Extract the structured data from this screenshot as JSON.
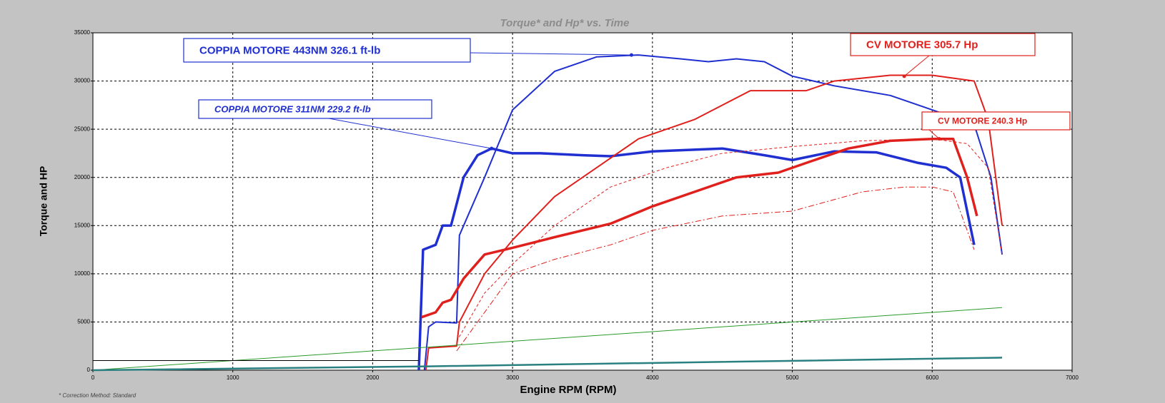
{
  "chart_data": {
    "type": "line",
    "title": "Torque* and Hp* vs. Time",
    "x_label": "Engine RPM (RPM)",
    "y_label": "Torque and HP",
    "footnote": "* Correction Method: Standard",
    "xlim": [
      0,
      7000
    ],
    "xticks": [
      0,
      1000,
      2000,
      3000,
      4000,
      5000,
      6000,
      7000
    ],
    "ylim": [
      0,
      35000
    ],
    "yticks": [
      0,
      5000,
      10000,
      15000,
      20000,
      25000,
      30000,
      35000
    ],
    "grid": true,
    "series": [
      {
        "color": "#1f2fd0",
        "width": 2,
        "dash": "solid",
        "x": [
          2370,
          2400,
          2450,
          2600,
          2620,
          2800,
          3000,
          3300,
          3600,
          3900,
          4200,
          4400,
          4600,
          4800,
          5000,
          5300,
          5700,
          6000,
          6300,
          6420,
          6500
        ],
        "values": [
          0,
          4500,
          5000,
          4900,
          14000,
          20000,
          27000,
          31000,
          32500,
          32700,
          32300,
          32000,
          32300,
          32000,
          30500,
          29500,
          28500,
          27000,
          25500,
          20000,
          12000
        ]
      },
      {
        "color": "#1f2fd0",
        "width": 3.5,
        "dash": "solid",
        "x": [
          2330,
          2360,
          2450,
          2500,
          2560,
          2650,
          2750,
          2850,
          3000,
          3200,
          3500,
          3700,
          4000,
          4500,
          4800,
          5000,
          5300,
          5600,
          5900,
          6100,
          6200,
          6300
        ],
        "values": [
          0,
          12500,
          13000,
          15000,
          15000,
          20000,
          22300,
          23000,
          22500,
          22500,
          22300,
          22200,
          22700,
          23000,
          22300,
          21800,
          22700,
          22600,
          21500,
          21000,
          20000,
          13000
        ]
      },
      {
        "color": "#e0201c",
        "width": 2,
        "dash": "solid",
        "x": [
          2380,
          2400,
          2600,
          2620,
          2800,
          3000,
          3300,
          3600,
          3900,
          4300,
          4700,
          5100,
          5300,
          5700,
          6000,
          6300,
          6400,
          6500
        ],
        "values": [
          0,
          2300,
          2500,
          5000,
          10000,
          13500,
          18000,
          21000,
          24000,
          26000,
          29000,
          29000,
          30000,
          30600,
          30600,
          30000,
          26000,
          15000
        ]
      },
      {
        "color": "#e0201c",
        "width": 3.5,
        "dash": "solid",
        "x": [
          2350,
          2450,
          2500,
          2560,
          2650,
          2800,
          3000,
          3300,
          3700,
          4000,
          4300,
          4600,
          4900,
          5100,
          5400,
          5700,
          6000,
          6150,
          6250,
          6320
        ],
        "values": [
          5500,
          6000,
          7000,
          7300,
          9500,
          12000,
          12700,
          13800,
          15200,
          17000,
          18500,
          20000,
          20500,
          21500,
          23000,
          23800,
          24000,
          24000,
          20000,
          16000
        ]
      },
      {
        "color": "#e0201c",
        "width": 1,
        "dash": "dashed",
        "x": [
          2600,
          2800,
          3000,
          3300,
          3700,
          4100,
          4500,
          5000,
          5500,
          6000,
          6250,
          6400,
          6500
        ],
        "values": [
          3000,
          8000,
          11000,
          15000,
          19000,
          21000,
          22500,
          23200,
          23800,
          24000,
          23500,
          21000,
          12000
        ]
      },
      {
        "color": "#e0201c",
        "width": 1,
        "dash": "dashdot",
        "x": [
          2600,
          2800,
          3000,
          3300,
          3700,
          4000,
          4500,
          5000,
          5500,
          5800,
          6000,
          6150,
          6300
        ],
        "values": [
          2000,
          6000,
          10000,
          11500,
          13000,
          14500,
          16000,
          16500,
          18500,
          19000,
          19000,
          18500,
          12500
        ]
      },
      {
        "color": "#2a9a2a",
        "width": 1,
        "dash": "solid",
        "x": [
          0,
          6500
        ],
        "values": [
          0,
          6500
        ]
      },
      {
        "color": "#2a7f80",
        "width": 2.5,
        "dash": "solid",
        "x": [
          0,
          2400,
          6500
        ],
        "values": [
          0,
          400,
          1300
        ]
      },
      {
        "color": "#000000",
        "width": 1,
        "dash": "solid",
        "x": [
          0,
          2330
        ],
        "values": [
          1000,
          1000
        ]
      }
    ],
    "annotations": [
      {
        "text": "COPPIA MOTORE 443NM 326.1 ft-lb",
        "color": "#1f2fd0",
        "x": 3850,
        "y": 32700
      },
      {
        "text": "COPPIA MOTORE 311NM 229.2 ft-lb",
        "color": "#1f2fd0",
        "x": 2850,
        "y": 23000
      },
      {
        "text": "CV MOTORE 305.7 Hp",
        "color": "#e0201c",
        "x": 5800,
        "y": 30500
      },
      {
        "text": "CV MOTORE 240.3 Hp",
        "color": "#e0201c",
        "x": 6050,
        "y": 24000
      }
    ]
  }
}
